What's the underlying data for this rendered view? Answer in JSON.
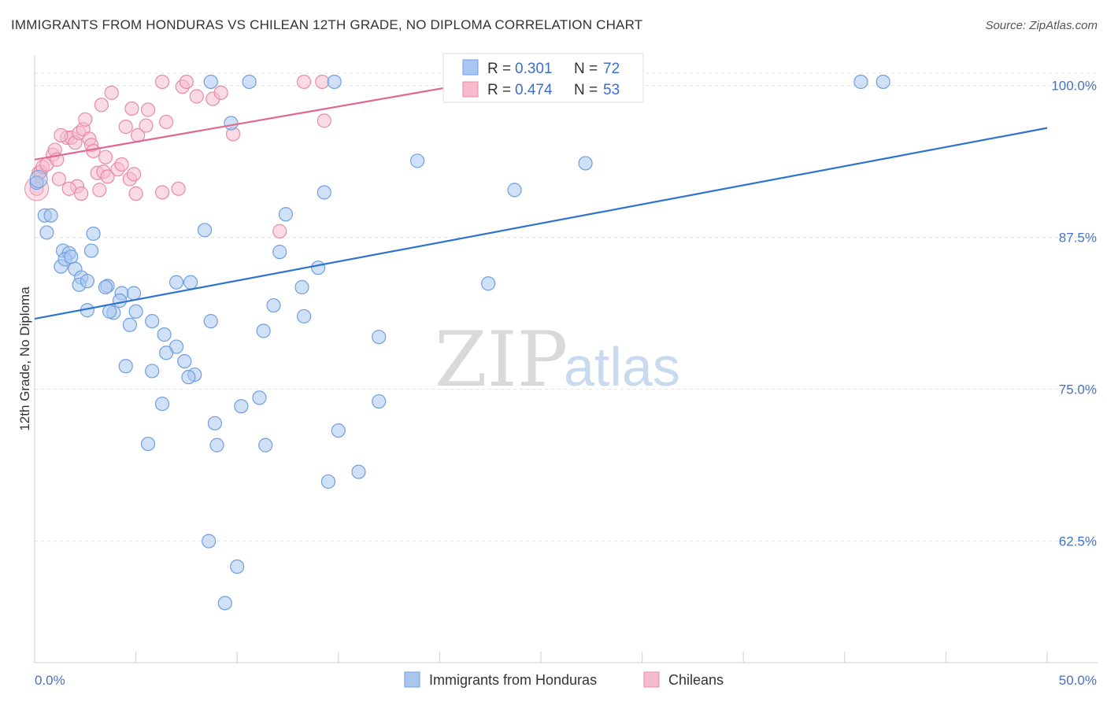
{
  "header": {
    "title": "IMMIGRANTS FROM HONDURAS VS CHILEAN 12TH GRADE, NO DIPLOMA CORRELATION CHART",
    "source": "Source: ZipAtlas.com"
  },
  "watermark": {
    "zip": "ZIP",
    "atlas": "atlas"
  },
  "colors": {
    "blue_fill": "#a9c6ee",
    "blue_stroke": "#6f9fe0",
    "blue_line": "#2e74cc",
    "pink_fill": "#f6bccd",
    "pink_stroke": "#e98aa7",
    "pink_line": "#e06890",
    "grid": "#e2e2e2",
    "tick_text": "#4472c4"
  },
  "legend": {
    "r_label": "R =",
    "n_label": "N =",
    "series": [
      {
        "r": "0.301",
        "n": "72"
      },
      {
        "r": "0.474",
        "n": "53"
      }
    ]
  },
  "chart_data": {
    "type": "scatter",
    "xlabel": "",
    "ylabel": "12th Grade, No Diploma",
    "xlim": [
      0,
      50
    ],
    "ylim": [
      52.5,
      102.5
    ],
    "x_tick_labels": [
      "0.0%",
      "50.0%"
    ],
    "y_ticks": [
      62.5,
      75.0,
      87.5,
      100.0
    ],
    "y_tick_labels": [
      "62.5%",
      "75.0%",
      "87.5%",
      "100.0%"
    ],
    "grid": true,
    "series": [
      {
        "name": "Immigrants from Honduras",
        "color": "blue",
        "trend": {
          "x": [
            0,
            50
          ],
          "y": [
            80.8,
            96.5
          ]
        },
        "points": [
          [
            0.1,
            92.0
          ],
          [
            0.5,
            89.3
          ],
          [
            0.8,
            89.3
          ],
          [
            0.6,
            87.9
          ],
          [
            1.4,
            86.4
          ],
          [
            1.7,
            86.2
          ],
          [
            1.3,
            85.1
          ],
          [
            1.5,
            85.7
          ],
          [
            1.8,
            85.9
          ],
          [
            2.0,
            84.9
          ],
          [
            2.3,
            84.2
          ],
          [
            2.2,
            83.6
          ],
          [
            2.9,
            87.8
          ],
          [
            2.8,
            86.4
          ],
          [
            2.6,
            83.9
          ],
          [
            3.6,
            83.5
          ],
          [
            3.5,
            83.4
          ],
          [
            4.3,
            82.9
          ],
          [
            4.9,
            82.9
          ],
          [
            4.2,
            82.3
          ],
          [
            2.6,
            81.5
          ],
          [
            3.9,
            81.3
          ],
          [
            5.0,
            81.4
          ],
          [
            3.7,
            81.4
          ],
          [
            5.8,
            80.6
          ],
          [
            4.7,
            80.3
          ],
          [
            6.4,
            79.5
          ],
          [
            7.0,
            78.5
          ],
          [
            6.5,
            78.0
          ],
          [
            7.4,
            77.3
          ],
          [
            7.9,
            76.2
          ],
          [
            7.6,
            76.0
          ],
          [
            4.5,
            76.9
          ],
          [
            5.8,
            76.5
          ],
          [
            7.0,
            83.8
          ],
          [
            7.7,
            83.8
          ],
          [
            8.4,
            88.1
          ],
          [
            8.7,
            80.6
          ],
          [
            12.1,
            86.3
          ],
          [
            11.8,
            81.9
          ],
          [
            11.3,
            79.8
          ],
          [
            12.4,
            89.4
          ],
          [
            13.2,
            83.4
          ],
          [
            13.3,
            81.0
          ],
          [
            14.0,
            85.0
          ],
          [
            14.3,
            91.2
          ],
          [
            11.1,
            74.3
          ],
          [
            10.2,
            73.6
          ],
          [
            6.3,
            73.8
          ],
          [
            8.9,
            72.2
          ],
          [
            15.0,
            71.6
          ],
          [
            9.0,
            70.4
          ],
          [
            11.4,
            70.4
          ],
          [
            5.6,
            70.5
          ],
          [
            14.5,
            67.4
          ],
          [
            16.0,
            68.2
          ],
          [
            8.6,
            62.5
          ],
          [
            10.0,
            60.4
          ],
          [
            9.4,
            57.4
          ],
          [
            17.0,
            79.3
          ],
          [
            17.0,
            74.0
          ],
          [
            18.9,
            93.8
          ],
          [
            22.4,
            83.7
          ],
          [
            23.7,
            91.4
          ],
          [
            27.2,
            93.6
          ],
          [
            9.7,
            96.9
          ],
          [
            8.7,
            100.3
          ],
          [
            10.6,
            100.3
          ],
          [
            14.8,
            100.3
          ],
          [
            21.8,
            100.3
          ],
          [
            40.8,
            100.3
          ],
          [
            41.9,
            100.3
          ]
        ]
      },
      {
        "name": "Chileans",
        "color": "pink",
        "trend": {
          "x": [
            0,
            23
          ],
          "y": [
            93.9,
            100.6
          ]
        },
        "points": [
          [
            0.1,
            91.5
          ],
          [
            0.2,
            92.8
          ],
          [
            0.3,
            92.9
          ],
          [
            0.4,
            93.3
          ],
          [
            0.6,
            93.5
          ],
          [
            0.9,
            94.3
          ],
          [
            1.0,
            94.7
          ],
          [
            1.2,
            92.3
          ],
          [
            1.1,
            93.9
          ],
          [
            1.6,
            95.7
          ],
          [
            1.8,
            95.7
          ],
          [
            2.0,
            95.3
          ],
          [
            1.3,
            95.9
          ],
          [
            2.1,
            91.7
          ],
          [
            2.3,
            91.1
          ],
          [
            1.7,
            91.5
          ],
          [
            2.2,
            96.1
          ],
          [
            2.4,
            96.4
          ],
          [
            2.5,
            97.2
          ],
          [
            2.7,
            95.6
          ],
          [
            2.8,
            95.1
          ],
          [
            2.9,
            94.6
          ],
          [
            3.1,
            92.8
          ],
          [
            3.4,
            92.9
          ],
          [
            3.2,
            91.4
          ],
          [
            3.6,
            92.5
          ],
          [
            3.5,
            94.1
          ],
          [
            4.1,
            93.1
          ],
          [
            4.3,
            93.5
          ],
          [
            4.7,
            92.3
          ],
          [
            4.9,
            92.7
          ],
          [
            5.0,
            91.1
          ],
          [
            4.5,
            96.6
          ],
          [
            5.1,
            95.9
          ],
          [
            4.8,
            98.1
          ],
          [
            5.5,
            96.7
          ],
          [
            5.6,
            98.0
          ],
          [
            6.3,
            91.2
          ],
          [
            6.5,
            97.0
          ],
          [
            7.1,
            91.5
          ],
          [
            3.3,
            98.4
          ],
          [
            3.8,
            99.4
          ],
          [
            7.3,
            99.9
          ],
          [
            8.0,
            99.1
          ],
          [
            8.8,
            98.9
          ],
          [
            9.2,
            99.4
          ],
          [
            6.3,
            100.3
          ],
          [
            7.5,
            100.3
          ],
          [
            13.3,
            100.3
          ],
          [
            14.2,
            100.3
          ],
          [
            14.3,
            97.1
          ],
          [
            9.8,
            96.0
          ],
          [
            12.1,
            88.0
          ]
        ]
      }
    ]
  },
  "bottom_legend": [
    "Immigrants from Honduras",
    "Chileans"
  ]
}
